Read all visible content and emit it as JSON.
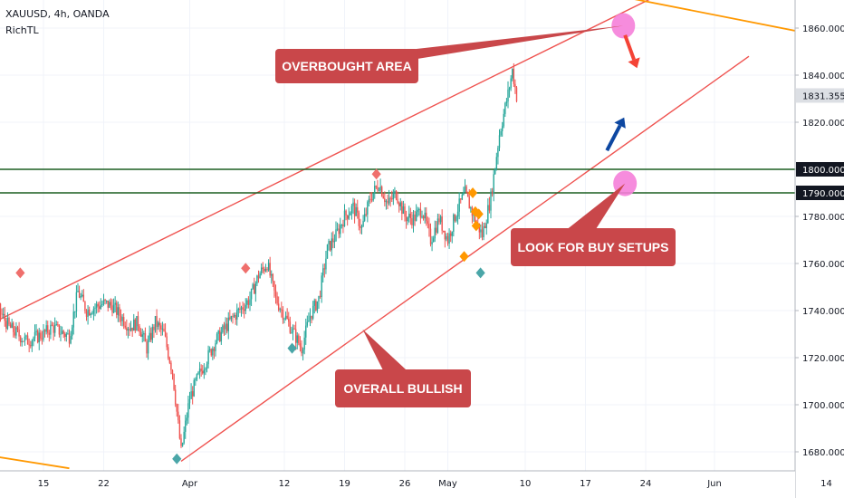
{
  "header": {
    "symbol_line": "XAUUSD, 4h, OANDA",
    "author": "RichTL"
  },
  "colors": {
    "up": "#26a69a",
    "down": "#ef5350",
    "channel": "#ef5350",
    "trendline": "#ff9800",
    "support": "#1b5e20",
    "callout": "#c9474a",
    "highlight": "#f57fd9",
    "arrow_up": "#0d47a1",
    "arrow_down": "#f44336",
    "marker_red": "#ef6f6c",
    "marker_teal": "#4aa6a8",
    "marker_orange": "#ff9800"
  },
  "chart_data": {
    "type": "candlestick",
    "instrument": "XAUUSD",
    "timeframe": "4h",
    "exchange": "OANDA",
    "ylim": [
      1670,
      1880
    ],
    "y_ticks": [
      1680,
      1700,
      1720,
      1740,
      1760,
      1780,
      1800,
      1820,
      1840,
      1860
    ],
    "y_tick_labels": [
      "1680.000",
      "1700.000",
      "1720.000",
      "1740.000",
      "1760.000",
      "1780.000",
      "1800.000",
      "1820.000",
      "1840.000",
      "1860.000"
    ],
    "x_tick_labels": [
      "15",
      "22",
      "Apr",
      "12",
      "19",
      "26",
      "May",
      "10",
      "17",
      "24",
      "Jun",
      "14"
    ],
    "x_tick_days": [
      15,
      22,
      32,
      43,
      50,
      57,
      62,
      71,
      78,
      85,
      93,
      106
    ],
    "price_labels": [
      {
        "value": 1831.355,
        "text": "1831.355",
        "style": "last"
      },
      {
        "value": 1800,
        "text": "1800.000",
        "style": "level"
      },
      {
        "value": 1790,
        "text": "1790.000",
        "style": "level"
      }
    ],
    "levels": [
      1800,
      1790
    ],
    "trend_points": [
      {
        "day": 0,
        "price": 1716
      },
      {
        "day": 2,
        "price": 1728
      },
      {
        "day": 4,
        "price": 1718
      },
      {
        "day": 6,
        "price": 1708
      },
      {
        "day": 8,
        "price": 1735
      },
      {
        "day": 9,
        "price": 1745
      },
      {
        "day": 11,
        "price": 1733
      },
      {
        "day": 13,
        "price": 1727
      },
      {
        "day": 15,
        "price": 1730
      },
      {
        "day": 16,
        "price": 1733
      },
      {
        "day": 18,
        "price": 1729
      },
      {
        "day": 19,
        "price": 1748
      },
      {
        "day": 20,
        "price": 1740
      },
      {
        "day": 22,
        "price": 1743
      },
      {
        "day": 23,
        "price": 1742
      },
      {
        "day": 25,
        "price": 1733
      },
      {
        "day": 26,
        "price": 1735
      },
      {
        "day": 27,
        "price": 1724
      },
      {
        "day": 28,
        "price": 1735
      },
      {
        "day": 29,
        "price": 1730
      },
      {
        "day": 30,
        "price": 1714
      },
      {
        "day": 31,
        "price": 1680
      },
      {
        "day": 32,
        "price": 1703
      },
      {
        "day": 33,
        "price": 1712
      },
      {
        "day": 35,
        "price": 1727
      },
      {
        "day": 37,
        "price": 1737
      },
      {
        "day": 39,
        "price": 1745
      },
      {
        "day": 40,
        "price": 1755
      },
      {
        "day": 41,
        "price": 1760
      },
      {
        "day": 42,
        "price": 1745
      },
      {
        "day": 43,
        "price": 1738
      },
      {
        "day": 44,
        "price": 1731
      },
      {
        "day": 45,
        "price": 1724
      },
      {
        "day": 46,
        "price": 1738
      },
      {
        "day": 47,
        "price": 1745
      },
      {
        "day": 48,
        "price": 1766
      },
      {
        "day": 49,
        "price": 1772
      },
      {
        "day": 50,
        "price": 1780
      },
      {
        "day": 51,
        "price": 1784
      },
      {
        "day": 52,
        "price": 1775
      },
      {
        "day": 53,
        "price": 1788
      },
      {
        "day": 54,
        "price": 1794
      },
      {
        "day": 55,
        "price": 1785
      },
      {
        "day": 56,
        "price": 1790
      },
      {
        "day": 57,
        "price": 1780
      },
      {
        "day": 58,
        "price": 1779
      },
      {
        "day": 59,
        "price": 1783
      },
      {
        "day": 60,
        "price": 1770
      },
      {
        "day": 61,
        "price": 1779
      },
      {
        "day": 62,
        "price": 1770
      },
      {
        "day": 63,
        "price": 1782
      },
      {
        "day": 64,
        "price": 1790
      },
      {
        "day": 65,
        "price": 1780
      },
      {
        "day": 66,
        "price": 1772
      },
      {
        "day": 67,
        "price": 1788
      },
      {
        "day": 68,
        "price": 1815
      },
      {
        "day": 69,
        "price": 1832
      },
      {
        "day": 69.5,
        "price": 1842
      },
      {
        "day": 70,
        "price": 1831
      }
    ],
    "channel_lower": {
      "start": {
        "day": 31,
        "price": 1676
      },
      "end": {
        "day": 97,
        "price": 1848
      }
    },
    "channel_upper": {
      "start": {
        "day": 2,
        "price": 1722
      },
      "end": {
        "day": 92,
        "price": 1884
      }
    },
    "trendline_top": {
      "start": {
        "day": 66,
        "price": 1885
      },
      "end": {
        "day": 130,
        "price": 1839
      }
    },
    "trendline_bottom": {
      "start": {
        "day": -1,
        "price": 1684
      },
      "end": {
        "day": 18,
        "price": 1673
      }
    },
    "markers": [
      {
        "day": 12.3,
        "price": 1756,
        "color": "red"
      },
      {
        "day": 38.5,
        "price": 1758,
        "color": "red"
      },
      {
        "day": 53.7,
        "price": 1798,
        "color": "red"
      },
      {
        "day": 43.9,
        "price": 1724,
        "color": "teal"
      },
      {
        "day": 30.5,
        "price": 1677,
        "color": "teal"
      },
      {
        "day": 65.8,
        "price": 1756,
        "color": "teal"
      },
      {
        "day": 64.9,
        "price": 1790,
        "color": "orange"
      },
      {
        "day": 65.2,
        "price": 1782,
        "color": "orange"
      },
      {
        "day": 65.6,
        "price": 1781,
        "color": "orange"
      },
      {
        "day": 65.3,
        "price": 1776,
        "color": "orange"
      },
      {
        "day": 63.9,
        "price": 1763,
        "color": "orange"
      }
    ],
    "highlights": [
      {
        "day": 82.4,
        "price": 1861
      },
      {
        "day": 82.6,
        "price": 1794
      }
    ],
    "arrows": [
      {
        "from": {
          "day": 82.6,
          "price": 1857
        },
        "to": {
          "day": 84,
          "price": 1843
        },
        "color": "down"
      },
      {
        "from": {
          "day": 80.5,
          "price": 1808
        },
        "to": {
          "day": 82.5,
          "price": 1822
        },
        "color": "up"
      }
    ],
    "annotations": [
      {
        "text": "OVERBOUGHT AREA",
        "anchor": {
          "day": 82.4,
          "price": 1861
        }
      },
      {
        "text": "LOOK FOR BUY SETUPS",
        "anchor": {
          "day": 82.6,
          "price": 1794
        }
      },
      {
        "text": "OVERALL BULLISH",
        "anchor": {
          "day": 52.1,
          "price": 1732
        }
      }
    ]
  }
}
